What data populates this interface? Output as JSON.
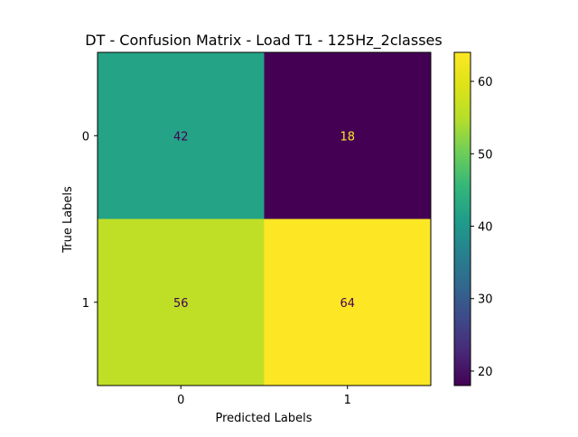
{
  "chart_data": {
    "type": "heatmap",
    "title": "DT - Confusion Matrix - Load T1 - 125Hz_2classes",
    "xlabel": "Predicted Labels",
    "ylabel": "True Labels",
    "x_categories": [
      "0",
      "1"
    ],
    "y_categories": [
      "0",
      "1"
    ],
    "matrix": [
      [
        42,
        18
      ],
      [
        56,
        64
      ]
    ],
    "colormap": "viridis",
    "colorbar": {
      "min": 18,
      "max": 64,
      "ticks": [
        "20",
        "30",
        "40",
        "50",
        "60"
      ]
    },
    "grid": false
  }
}
